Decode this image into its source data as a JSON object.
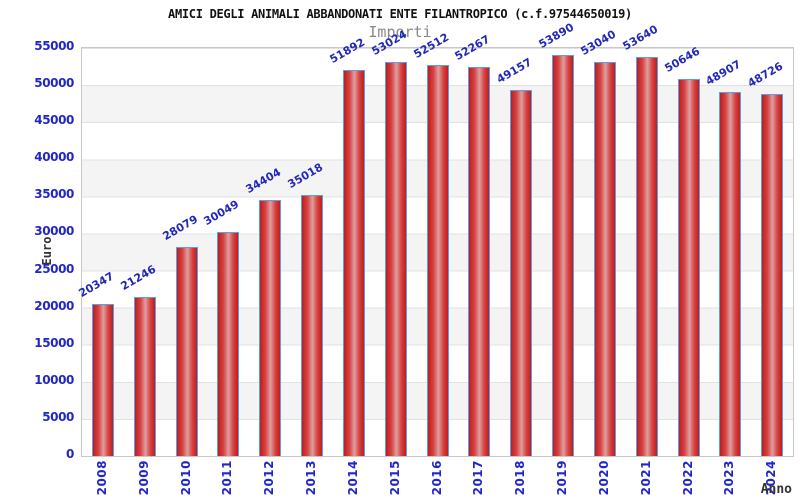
{
  "chart_data": {
    "type": "bar",
    "title": "AMICI DEGLI ANIMALI ABBANDONATI ENTE FILANTROPICO (c.f.97544650019)",
    "subtitle": "Importi",
    "xlabel": "Anno",
    "ylabel": "Euro",
    "categories": [
      "2008",
      "2009",
      "2010",
      "2011",
      "2012",
      "2013",
      "2014",
      "2015",
      "2016",
      "2017",
      "2018",
      "2019",
      "2020",
      "2021",
      "2022",
      "2023",
      "2024"
    ],
    "values": [
      20347,
      21246,
      28079,
      30049,
      34404,
      35018,
      51892,
      53024,
      52512,
      52267,
      49157,
      53890,
      53040,
      53640,
      50646,
      48907,
      48726
    ],
    "ylim": [
      0,
      55000
    ],
    "ytick_step": 5000,
    "grid": "horizontal gridlines with alternating white/gray bands",
    "legend_position": "none",
    "colors": {
      "bar_fill_dark": "#bf1d1d",
      "bar_fill_light": "#dda0a0",
      "bar_border": "#58a0e8",
      "value_label_text": "#2228b8",
      "axis_tick_text": "#2126c8",
      "band_gray": "#f4f4f4",
      "gridline": "#e2e2e2",
      "plot_border": "#c8c8c8",
      "title_text": "#111111",
      "subtitle_text": "#888888",
      "axis_title_text": "#333333"
    }
  }
}
